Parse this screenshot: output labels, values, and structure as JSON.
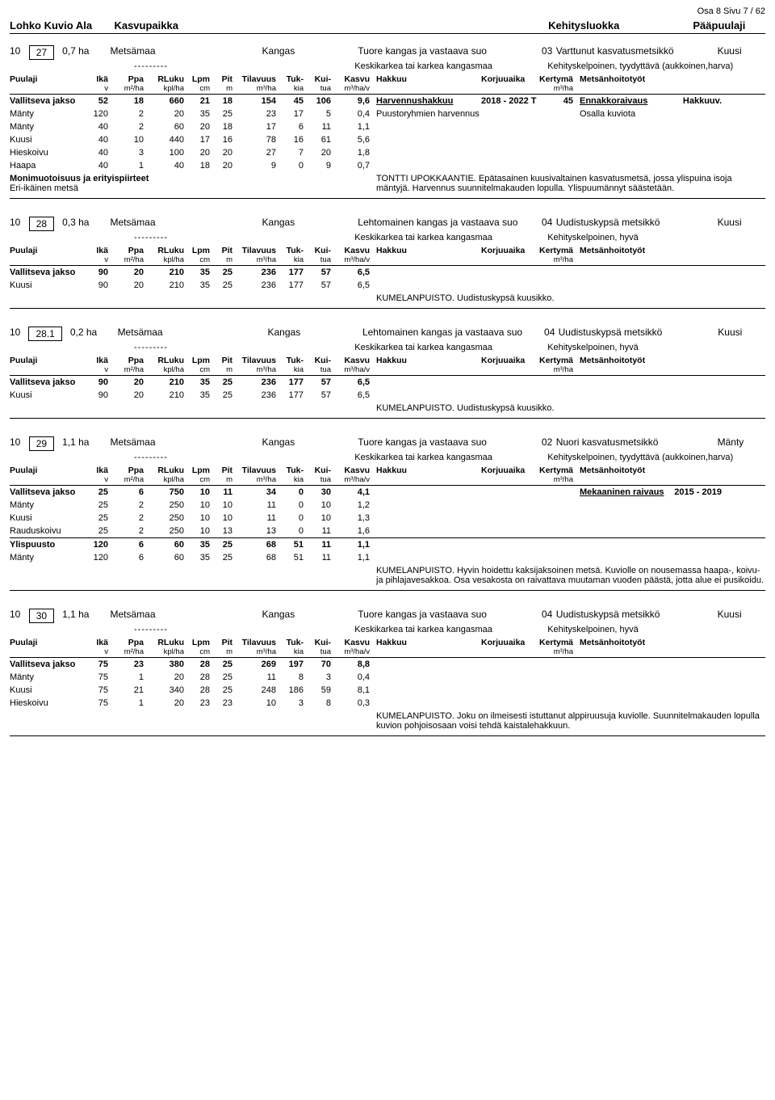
{
  "page_header_top": "Osa 8   Sivu 7 /  62",
  "main_header": {
    "lohko_kuvio_ala": "Lohko  Kuvio  Ala",
    "kasvupaikka": "Kasvupaikka",
    "kehitysluokka": "Kehitysluokka",
    "paapuulaji": "Pääpuulaji"
  },
  "col_labels": {
    "puulaji": "Puulaji",
    "ika": "Ikä",
    "ika_u": "v",
    "ppa": "Ppa",
    "ppa_u": "m²/ha",
    "rluku": "RLuku",
    "rluku_u": "kpl/ha",
    "lpm": "Lpm",
    "lpm_u": "cm",
    "pit": "Pit",
    "pit_u": "m",
    "til": "Tilavuus",
    "til_u": "m³/ha",
    "tuk": "Tuk-",
    "tuk_u": "kia",
    "kui": "Kui-",
    "kui_u": "tua",
    "kasvu": "Kasvu",
    "kasvu_u": "m³/ha/v",
    "hakkuu": "Hakkuu",
    "korj": "Korjuuaika",
    "kert": "Kertymä",
    "kert_u": "m³/ha",
    "met": "Metsänhoitotyöt"
  },
  "dashes": "---------",
  "sections": [
    {
      "lohko": "10",
      "kuvio": "27",
      "ala": "0,7  ha",
      "kp": "Metsämaa",
      "kangas": "Kangas",
      "tuore": "Tuore kangas ja vastaava suo",
      "dev_no": "03",
      "dev_txt": "Varttunut kasvatusmetsikkö",
      "species": "Kuusi",
      "keskik": "Keskikarkea tai karkea kangasmaa",
      "kehsk": "Kehityskelpoinen, tyydyttävä (aukkoinen,harva)",
      "rows": [
        {
          "cls": "vj",
          "n": "Vallitseva jakso",
          "ika": "52",
          "ppa": "18",
          "rl": "660",
          "lpm": "21",
          "pit": "18",
          "til": "154",
          "tuk": "45",
          "kui": "106",
          "kas": "9,6",
          "hak": "Harvennushakkuu",
          "hak_u": true,
          "korj": "2018 - 2022 T",
          "kert": "45",
          "met": "Ennakkoraivaus",
          "met_u": true,
          "end": "Hakkuuv."
        },
        {
          "n": "Mänty",
          "ika": "120",
          "ppa": "2",
          "rl": "20",
          "lpm": "35",
          "pit": "25",
          "til": "23",
          "tuk": "17",
          "kui": "5",
          "kas": "0,4",
          "hak": "Puustoryhmien harvennus",
          "met": "Osalla kuviota"
        },
        {
          "n": "Mänty",
          "ika": "40",
          "ppa": "2",
          "rl": "60",
          "lpm": "20",
          "pit": "18",
          "til": "17",
          "tuk": "6",
          "kui": "11",
          "kas": "1,1"
        },
        {
          "n": "Kuusi",
          "ika": "40",
          "ppa": "10",
          "rl": "440",
          "lpm": "17",
          "pit": "16",
          "til": "78",
          "tuk": "16",
          "kui": "61",
          "kas": "5,6"
        },
        {
          "n": "Hieskoivu",
          "ika": "40",
          "ppa": "3",
          "rl": "100",
          "lpm": "20",
          "pit": "20",
          "til": "27",
          "tuk": "7",
          "kui": "20",
          "kas": "1,8"
        },
        {
          "n": "Haapa",
          "ika": "40",
          "ppa": "1",
          "rl": "40",
          "lpm": "18",
          "pit": "20",
          "til": "9",
          "tuk": "0",
          "kui": "9",
          "kas": "0,7"
        }
      ],
      "note_left_1": "Monimuotoisuus ja erityispiirteet",
      "note_left_2": "Eri-ikäinen metsä",
      "note_right": "TONTTI UPOKKAANTIE. Epätasainen kuusivaltainen kasvatusmetsä, jossa ylispuina isoja mäntyjä. Harvennus suunnitelmakauden lopulla. Ylispuumännyt säästetään."
    },
    {
      "lohko": "10",
      "kuvio": "28",
      "ala": "0,3  ha",
      "kp": "Metsämaa",
      "kangas": "Kangas",
      "tuore": "Lehtomainen kangas ja vastaava suo",
      "dev_no": "04",
      "dev_txt": "Uudistuskypsä metsikkö",
      "species": "Kuusi",
      "keskik": "Keskikarkea tai karkea kangasmaa",
      "kehsk": "Kehityskelpoinen, hyvä",
      "rows": [
        {
          "cls": "vj",
          "n": "Vallitseva jakso",
          "ika": "90",
          "ppa": "20",
          "rl": "210",
          "lpm": "35",
          "pit": "25",
          "til": "236",
          "tuk": "177",
          "kui": "57",
          "kas": "6,5"
        },
        {
          "n": "Kuusi",
          "ika": "90",
          "ppa": "20",
          "rl": "210",
          "lpm": "35",
          "pit": "25",
          "til": "236",
          "tuk": "177",
          "kui": "57",
          "kas": "6,5"
        }
      ],
      "note_only": "KUMELANPUISTO. Uudistuskypsä kuusikko."
    },
    {
      "lohko": "10",
      "kuvio": "28.1",
      "ala": "0,2  ha",
      "kp": "Metsämaa",
      "kangas": "Kangas",
      "tuore": "Lehtomainen kangas ja vastaava suo",
      "dev_no": "04",
      "dev_txt": "Uudistuskypsä metsikkö",
      "species": "Kuusi",
      "keskik": "Keskikarkea tai karkea kangasmaa",
      "kehsk": "Kehityskelpoinen, hyvä",
      "rows": [
        {
          "cls": "vj",
          "n": "Vallitseva jakso",
          "ika": "90",
          "ppa": "20",
          "rl": "210",
          "lpm": "35",
          "pit": "25",
          "til": "236",
          "tuk": "177",
          "kui": "57",
          "kas": "6,5"
        },
        {
          "n": "Kuusi",
          "ika": "90",
          "ppa": "20",
          "rl": "210",
          "lpm": "35",
          "pit": "25",
          "til": "236",
          "tuk": "177",
          "kui": "57",
          "kas": "6,5"
        }
      ],
      "note_only": "KUMELANPUISTO. Uudistuskypsä kuusikko."
    },
    {
      "lohko": "10",
      "kuvio": "29",
      "ala": "1,1  ha",
      "kp": "Metsämaa",
      "kangas": "Kangas",
      "tuore": "Tuore kangas ja vastaava suo",
      "dev_no": "02",
      "dev_txt": "Nuori kasvatusmetsikkö",
      "species": "Mänty",
      "keskik": "Keskikarkea tai karkea kangasmaa",
      "kehsk": "Kehityskelpoinen, tyydyttävä (aukkoinen,harva)",
      "rows": [
        {
          "cls": "vj",
          "n": "Vallitseva jakso",
          "ika": "25",
          "ppa": "6",
          "rl": "750",
          "lpm": "10",
          "pit": "11",
          "til": "34",
          "tuk": "0",
          "kui": "30",
          "kas": "4,1",
          "met": "Mekaaninen raivaus",
          "met_u": true,
          "end": "2015 - 2019"
        },
        {
          "n": "Mänty",
          "ika": "25",
          "ppa": "2",
          "rl": "250",
          "lpm": "10",
          "pit": "10",
          "til": "11",
          "tuk": "0",
          "kui": "10",
          "kas": "1,2"
        },
        {
          "n": "Kuusi",
          "ika": "25",
          "ppa": "2",
          "rl": "250",
          "lpm": "10",
          "pit": "10",
          "til": "11",
          "tuk": "0",
          "kui": "10",
          "kas": "1,3"
        },
        {
          "n": "Rauduskoivu",
          "ika": "25",
          "ppa": "2",
          "rl": "250",
          "lpm": "10",
          "pit": "13",
          "til": "13",
          "tuk": "0",
          "kui": "11",
          "kas": "1,6"
        },
        {
          "cls": "vj",
          "n": "Ylispuusto",
          "ika": "120",
          "ppa": "6",
          "rl": "60",
          "lpm": "35",
          "pit": "25",
          "til": "68",
          "tuk": "51",
          "kui": "11",
          "kas": "1,1",
          "septop": true
        },
        {
          "n": "Mänty",
          "ika": "120",
          "ppa": "6",
          "rl": "60",
          "lpm": "35",
          "pit": "25",
          "til": "68",
          "tuk": "51",
          "kui": "11",
          "kas": "1,1"
        }
      ],
      "note_only": "KUMELANPUISTO. Hyvin hoidettu kaksijaksoinen metsä. Kuviolle on nousemassa haapa-, koivu- ja pihlajavesakkoa. Osa vesakosta on raivattava muutaman vuoden päästä, jotta alue ei pusikoidu."
    },
    {
      "lohko": "10",
      "kuvio": "30",
      "ala": "1,1  ha",
      "kp": "Metsämaa",
      "kangas": "Kangas",
      "tuore": "Tuore kangas ja vastaava suo",
      "dev_no": "04",
      "dev_txt": "Uudistuskypsä metsikkö",
      "species": "Kuusi",
      "keskik": "Keskikarkea tai karkea kangasmaa",
      "kehsk": "Kehityskelpoinen, hyvä",
      "rows": [
        {
          "cls": "vj",
          "n": "Vallitseva jakso",
          "ika": "75",
          "ppa": "23",
          "rl": "380",
          "lpm": "28",
          "pit": "25",
          "til": "269",
          "tuk": "197",
          "kui": "70",
          "kas": "8,8"
        },
        {
          "n": "Mänty",
          "ika": "75",
          "ppa": "1",
          "rl": "20",
          "lpm": "28",
          "pit": "25",
          "til": "11",
          "tuk": "8",
          "kui": "3",
          "kas": "0,4"
        },
        {
          "n": "Kuusi",
          "ika": "75",
          "ppa": "21",
          "rl": "340",
          "lpm": "28",
          "pit": "25",
          "til": "248",
          "tuk": "186",
          "kui": "59",
          "kas": "8,1"
        },
        {
          "n": "Hieskoivu",
          "ika": "75",
          "ppa": "1",
          "rl": "20",
          "lpm": "23",
          "pit": "23",
          "til": "10",
          "tuk": "3",
          "kui": "8",
          "kas": "0,3"
        }
      ],
      "note_only": "KUMELANPUISTO. Joku on ilmeisesti istuttanut alppiruusuja kuviolle. Suunnitelmakauden lopulla kuvion pohjoisosaan voisi tehdä kaistalehakkuun."
    }
  ]
}
